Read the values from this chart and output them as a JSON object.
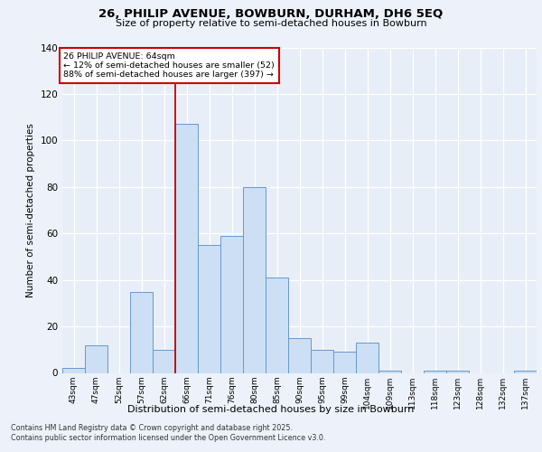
{
  "title_line1": "26, PHILIP AVENUE, BOWBURN, DURHAM, DH6 5EQ",
  "title_line2": "Size of property relative to semi-detached houses in Bowburn",
  "xlabel": "Distribution of semi-detached houses by size in Bowburn",
  "ylabel": "Number of semi-detached properties",
  "bins": [
    "43sqm",
    "47sqm",
    "52sqm",
    "57sqm",
    "62sqm",
    "66sqm",
    "71sqm",
    "76sqm",
    "80sqm",
    "85sqm",
    "90sqm",
    "95sqm",
    "99sqm",
    "104sqm",
    "109sqm",
    "113sqm",
    "118sqm",
    "123sqm",
    "128sqm",
    "132sqm",
    "137sqm"
  ],
  "values": [
    2,
    12,
    0,
    35,
    10,
    107,
    55,
    59,
    80,
    41,
    15,
    10,
    9,
    13,
    1,
    0,
    1,
    1,
    0,
    0,
    1
  ],
  "bar_color": "#ccdff5",
  "bar_edge_color": "#6699cc",
  "subject_label": "26 PHILIP AVENUE: 64sqm",
  "smaller_pct": 12,
  "smaller_count": 52,
  "larger_pct": 88,
  "larger_count": 397,
  "annotation_box_color": "#ffffff",
  "annotation_box_edge": "#cc0000",
  "red_line_color": "#cc0000",
  "ylim": [
    0,
    140
  ],
  "yticks": [
    0,
    20,
    40,
    60,
    80,
    100,
    120,
    140
  ],
  "footnote_line1": "Contains HM Land Registry data © Crown copyright and database right 2025.",
  "footnote_line2": "Contains public sector information licensed under the Open Government Licence v3.0.",
  "bg_color": "#edf2fa",
  "plot_bg_color": "#e8eef8",
  "grid_color": "#ffffff"
}
